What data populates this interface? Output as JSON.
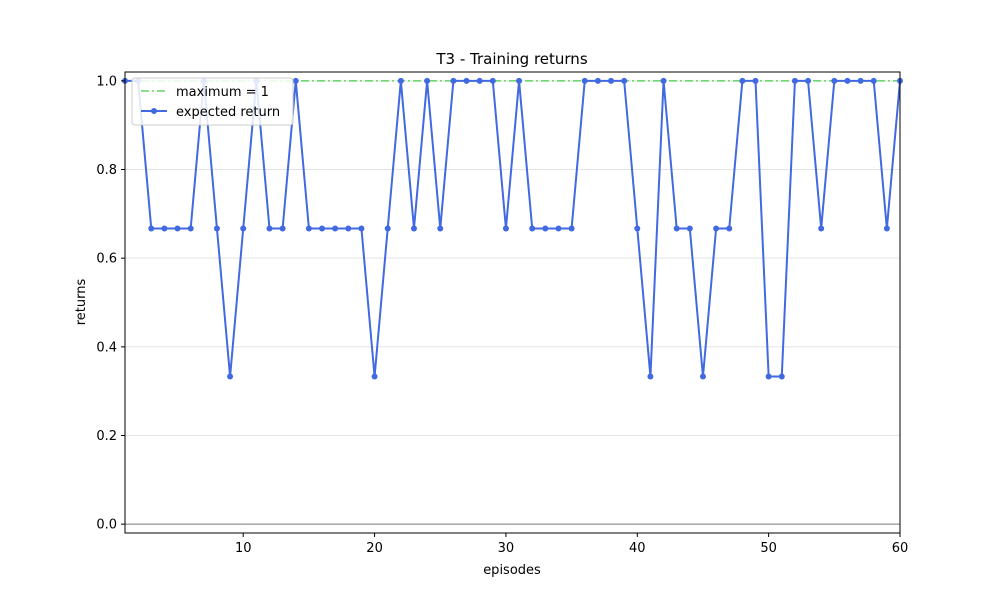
{
  "chart_data": {
    "type": "line",
    "title": "T3 - Training returns",
    "xlabel": "episodes",
    "ylabel": "returns",
    "xlim": [
      1,
      60
    ],
    "ylim": [
      -0.02,
      1.02
    ],
    "xticks": [
      10,
      20,
      30,
      40,
      50,
      60
    ],
    "yticks": [
      0.0,
      0.2,
      0.4,
      0.6,
      0.8,
      1.0
    ],
    "ytick_labels": [
      "0.0",
      "0.2",
      "0.4",
      "0.6",
      "0.8",
      "1.0"
    ],
    "grid": "horizontal",
    "legend_position": "top-left",
    "reference_line": {
      "name": "maximum = 1",
      "value": 1.0,
      "color": "#44cc44",
      "style": "dash-dot"
    },
    "series": [
      {
        "name": "expected return",
        "color": "#4169e1",
        "x": [
          1,
          2,
          3,
          4,
          5,
          6,
          7,
          8,
          9,
          10,
          11,
          12,
          13,
          14,
          15,
          16,
          17,
          18,
          19,
          20,
          21,
          22,
          23,
          24,
          25,
          26,
          27,
          28,
          29,
          30,
          31,
          32,
          33,
          34,
          35,
          36,
          37,
          38,
          39,
          40,
          41,
          42,
          43,
          44,
          45,
          46,
          47,
          48,
          49,
          50,
          51,
          52,
          53,
          54,
          55,
          56,
          57,
          58,
          59,
          60
        ],
        "values": [
          1.0,
          1.0,
          0.667,
          0.667,
          0.667,
          0.667,
          1.0,
          0.667,
          0.333,
          0.667,
          1.0,
          0.667,
          0.667,
          1.0,
          0.667,
          0.667,
          0.667,
          0.667,
          0.667,
          0.333,
          0.667,
          1.0,
          0.667,
          1.0,
          0.667,
          1.0,
          1.0,
          1.0,
          1.0,
          0.667,
          1.0,
          0.667,
          0.667,
          0.667,
          0.667,
          1.0,
          1.0,
          1.0,
          1.0,
          0.667,
          0.333,
          1.0,
          0.667,
          0.667,
          0.333,
          0.667,
          0.667,
          1.0,
          1.0,
          0.333,
          0.333,
          1.0,
          1.0,
          0.667,
          1.0,
          1.0,
          1.0,
          1.0,
          0.667,
          1.0
        ]
      }
    ]
  }
}
